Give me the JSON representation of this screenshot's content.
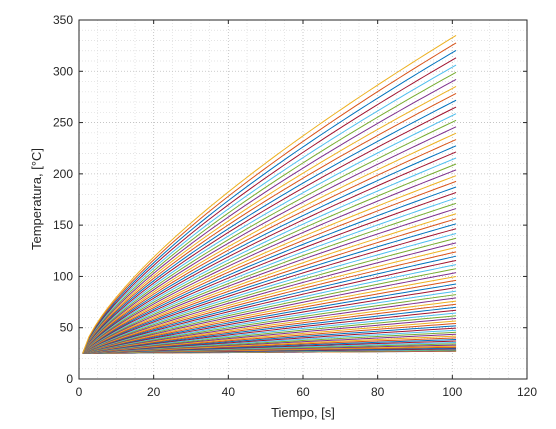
{
  "chart_data": {
    "type": "line",
    "title": "",
    "xlabel": "Tiempo,  [s]",
    "ylabel": "Temperatura,  [°C]",
    "xlim": [
      0,
      120
    ],
    "ylim": [
      0,
      350
    ],
    "xticks": [
      0,
      20,
      40,
      60,
      80,
      100,
      120
    ],
    "xtick_labels": [
      "0",
      "20",
      "40",
      "60",
      "80",
      "100",
      "120"
    ],
    "yticks": [
      0,
      50,
      100,
      150,
      200,
      250,
      300,
      350
    ],
    "ytick_labels": [
      "0",
      "50",
      "100",
      "150",
      "200",
      "250",
      "300",
      "350"
    ],
    "grid": "major and minor (dotted)",
    "legend": "none",
    "curve_family": {
      "description_of_series": "80 temperature curves, all starting at 25 °C at t = 1 s and ending at t = 101 s",
      "x_start": 1,
      "x_end": 101,
      "y_start": 25,
      "series_count": 80,
      "end_values_max": 335,
      "end_values_min": 27,
      "shape_exponent_top": 0.72,
      "shape_exponent_bottom": 1.0
    },
    "color_cycle": [
      "#0072BD",
      "#D95319",
      "#EDB120",
      "#7E2F8E",
      "#77AC30",
      "#4DBEEE",
      "#A2142F"
    ]
  }
}
